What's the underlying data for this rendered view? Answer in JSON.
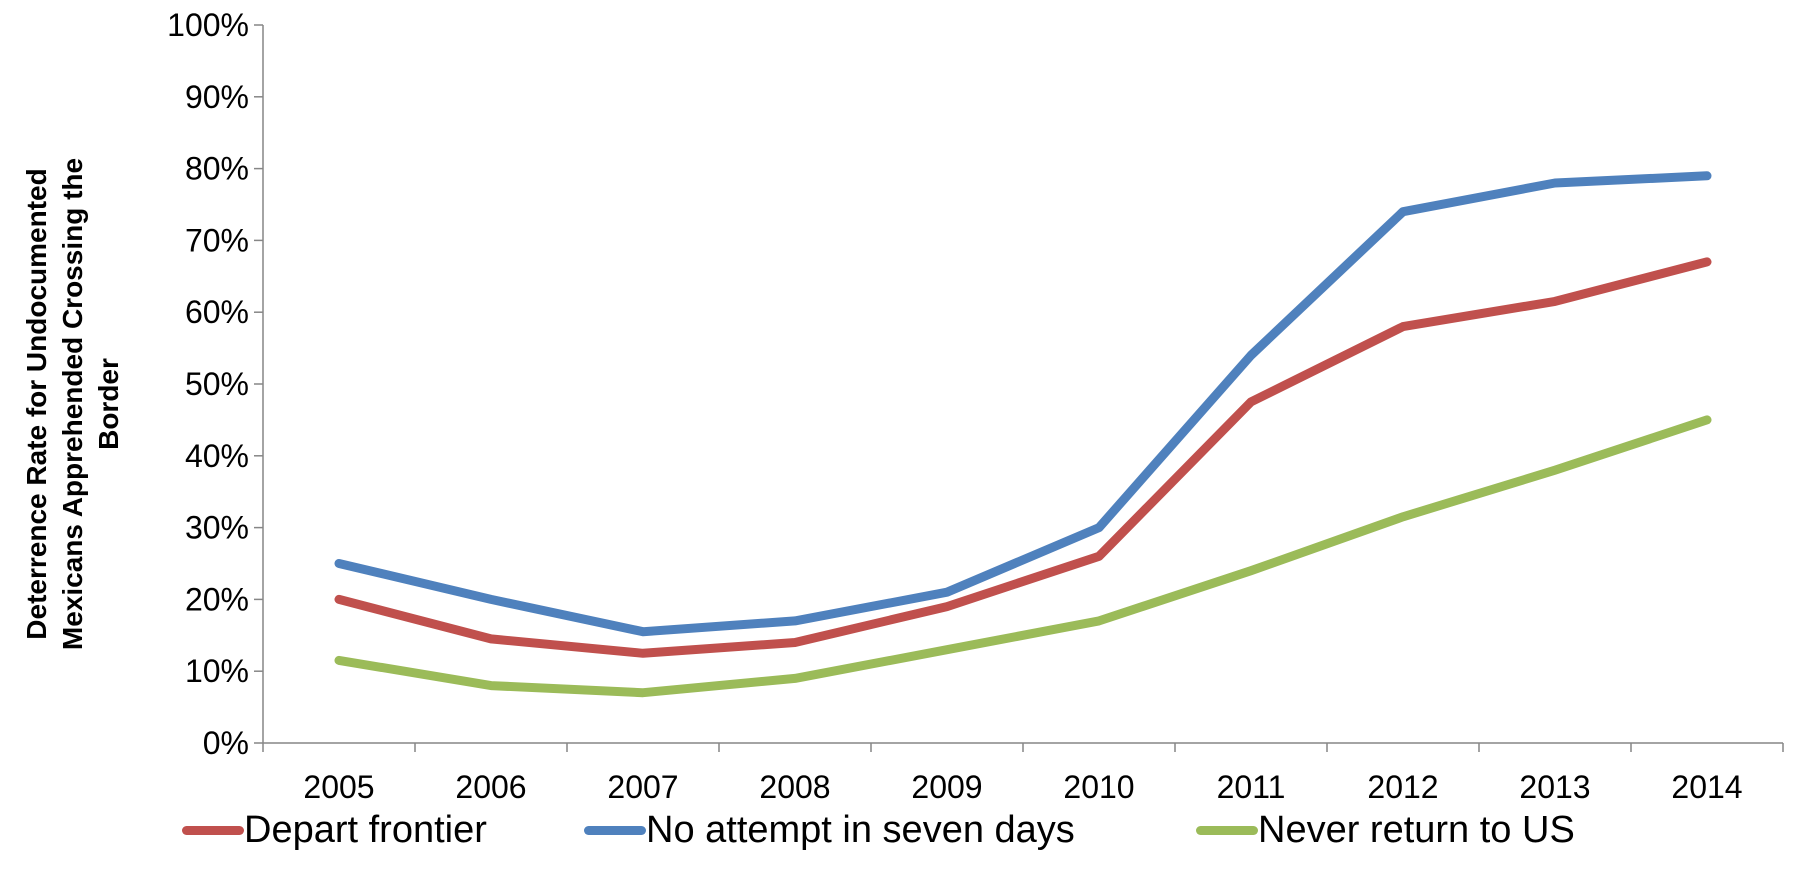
{
  "chart_data": {
    "type": "line",
    "title": "",
    "xlabel": "",
    "ylabel_lines": [
      "Deterrence Rate for Undocumented",
      "Mexicans Apprehended Crossing the",
      "Border"
    ],
    "x": [
      "2005",
      "2006",
      "2007",
      "2008",
      "2009",
      "2010",
      "2011",
      "2012",
      "2013",
      "2014"
    ],
    "ylim": [
      0,
      100
    ],
    "yticks": [
      0,
      10,
      20,
      30,
      40,
      50,
      60,
      70,
      80,
      90,
      100
    ],
    "ytick_labels": [
      "0%",
      "10%",
      "20%",
      "30%",
      "40%",
      "50%",
      "60%",
      "70%",
      "80%",
      "90%",
      "100%"
    ],
    "grid": false,
    "legend_position": "bottom",
    "series": [
      {
        "name": "Depart frontier",
        "color": "#C0504D",
        "values": [
          20,
          14.5,
          12.5,
          14,
          19,
          26,
          47.5,
          58,
          61.5,
          67
        ]
      },
      {
        "name": "No attempt in seven days",
        "color": "#4F81BD",
        "values": [
          25,
          20,
          15.5,
          17,
          21,
          30,
          54,
          74,
          78,
          79
        ]
      },
      {
        "name": "Never return to US",
        "color": "#9BBB59",
        "values": [
          11.5,
          8,
          7,
          9,
          13,
          17,
          24,
          31.5,
          38,
          45
        ]
      }
    ]
  }
}
